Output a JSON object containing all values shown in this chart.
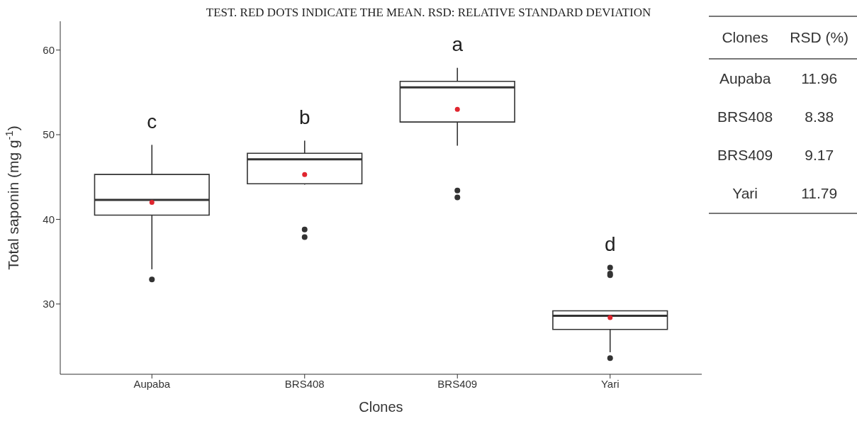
{
  "chart_data": [
    {
      "type": "box",
      "xlabel": "Clones",
      "ylabel": "Total saponin  (mg g$^{-1}$)",
      "categories": [
        "Aupaba",
        "BRS408",
        "BRS409",
        "Yari"
      ],
      "boxes": [
        {
          "low": 34.1,
          "q1": 40.5,
          "median": 42.3,
          "q3": 45.3,
          "high": 48.8,
          "mean": 42.0,
          "outliers": [
            32.9
          ]
        },
        {
          "low": 44.1,
          "q1": 44.2,
          "median": 47.1,
          "q3": 47.8,
          "high": 49.3,
          "mean": 45.3,
          "outliers": [
            38.8,
            37.9
          ]
        },
        {
          "low": 48.7,
          "q1": 51.5,
          "median": 55.6,
          "q3": 56.3,
          "high": 57.9,
          "mean": 53.0,
          "outliers": [
            43.4,
            42.6
          ]
        },
        {
          "low": 24.3,
          "q1": 27.0,
          "median": 28.6,
          "q3": 29.2,
          "high": 29.2,
          "mean": 28.4,
          "outliers": [
            34.3,
            33.6,
            33.4,
            23.6
          ]
        }
      ],
      "color": "#333333",
      "ylim": [
        21.7,
        63.4
      ],
      "yticks": [
        30,
        40,
        50,
        60
      ],
      "grid": false,
      "legend": false,
      "annotations": [
        "TEST. RED DOTS INDICATE THE MEAN. RSD: RELATIVE STANDARD DEVIATION",
        "c",
        "b",
        "a",
        "d"
      ]
    },
    {
      "type": "other",
      "categories": [
        "Aupaba",
        "BRS408",
        "BRS409",
        "Yari"
      ],
      "values": [
        11.96,
        8.38,
        9.17,
        11.79
      ],
      "data_labels": true,
      "annotations": [
        "Clones",
        "RSD (%)"
      ]
    }
  ]
}
